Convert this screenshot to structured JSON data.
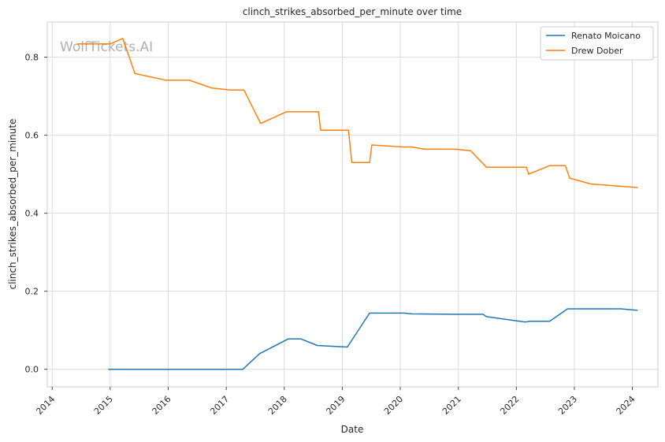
{
  "chart_data": {
    "type": "line",
    "title": "clinch_strikes_absorbed_per_minute over time",
    "xlabel": "Date",
    "ylabel": "clinch_strikes_absorbed_per_minute",
    "x_ticks": [
      "2014",
      "2015",
      "2016",
      "2017",
      "2018",
      "2019",
      "2020",
      "2021",
      "2022",
      "2023",
      "2024"
    ],
    "y_ticks": [
      "0.0",
      "0.2",
      "0.4",
      "0.6",
      "0.8"
    ],
    "xlim": [
      "2013-12-01",
      "2024-06-10"
    ],
    "ylim": [
      -0.045,
      0.89
    ],
    "grid": true,
    "legend_position": "top-right",
    "watermark": "WolfTickets.AI",
    "series": [
      {
        "name": "Renato Moicano",
        "color": "#1f77b4",
        "points": [
          [
            "2014-12-20",
            0.0
          ],
          [
            "2017-04-15",
            0.0
          ],
          [
            "2017-07-29",
            0.04
          ],
          [
            "2018-01-27",
            0.078
          ],
          [
            "2018-04-14",
            0.078
          ],
          [
            "2018-07-28",
            0.061
          ],
          [
            "2019-02-02",
            0.057
          ],
          [
            "2019-06-22",
            0.144
          ],
          [
            "2020-01-25",
            0.144
          ],
          [
            "2020-03-14",
            0.142
          ],
          [
            "2020-12-12",
            0.141
          ],
          [
            "2021-06-05",
            0.141
          ],
          [
            "2021-06-26",
            0.135
          ],
          [
            "2022-02-26",
            0.121
          ],
          [
            "2022-03-26",
            0.123
          ],
          [
            "2022-07-30",
            0.123
          ],
          [
            "2022-11-19",
            0.155
          ],
          [
            "2023-10-21",
            0.155
          ],
          [
            "2024-02-03",
            0.151
          ]
        ]
      },
      {
        "name": "Drew Dober",
        "color": "#ff7f0e",
        "points": [
          [
            "2014-06-07",
            0.834
          ],
          [
            "2014-10-11",
            0.834
          ],
          [
            "2015-01-03",
            0.834
          ],
          [
            "2015-03-21",
            0.848
          ],
          [
            "2015-06-06",
            0.758
          ],
          [
            "2015-12-19",
            0.741
          ],
          [
            "2016-05-14",
            0.741
          ],
          [
            "2016-10-01",
            0.721
          ],
          [
            "2017-01-28",
            0.716
          ],
          [
            "2017-04-22",
            0.716
          ],
          [
            "2017-08-05",
            0.63
          ],
          [
            "2018-01-14",
            0.66
          ],
          [
            "2018-08-04",
            0.66
          ],
          [
            "2018-08-18",
            0.613
          ],
          [
            "2019-02-09",
            0.613
          ],
          [
            "2019-03-02",
            0.53
          ],
          [
            "2019-06-22",
            0.53
          ],
          [
            "2019-07-06",
            0.575
          ],
          [
            "2020-01-18",
            0.57
          ],
          [
            "2020-03-14",
            0.57
          ],
          [
            "2020-05-30",
            0.564
          ],
          [
            "2020-12-19",
            0.564
          ],
          [
            "2021-03-20",
            0.56
          ],
          [
            "2021-06-26",
            0.518
          ],
          [
            "2022-03-05",
            0.518
          ],
          [
            "2022-03-19",
            0.5
          ],
          [
            "2022-07-30",
            0.522
          ],
          [
            "2022-11-05",
            0.522
          ],
          [
            "2022-12-03",
            0.49
          ],
          [
            "2023-04-15",
            0.475
          ],
          [
            "2023-09-23",
            0.47
          ],
          [
            "2024-02-03",
            0.466
          ]
        ]
      }
    ]
  }
}
